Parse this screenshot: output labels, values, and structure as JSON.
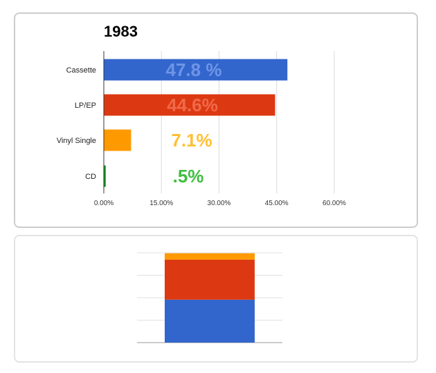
{
  "chart_data": [
    {
      "type": "bar",
      "orientation": "horizontal",
      "title": "1983",
      "categories": [
        "Cassette",
        "LP/EP",
        "Vinyl Single",
        "CD"
      ],
      "values": [
        47.8,
        44.6,
        7.1,
        0.5
      ],
      "data_labels": [
        "47.8 %",
        "44.6%",
        "7.1%",
        ".5%"
      ],
      "bar_colors": [
        "#3366cc",
        "#dc3912",
        "#ff9900",
        "#109618"
      ],
      "label_colors": [
        "#6f95e8",
        "#f06a4a",
        "#ffc034",
        "#3fbf3f"
      ],
      "xlim": [
        0,
        60
      ],
      "xticks": [
        0,
        15,
        30,
        45,
        60
      ],
      "xtick_labels": [
        "0.00%",
        "15.00%",
        "30.00%",
        "45.00%",
        "60.00%"
      ],
      "xlabel": "",
      "ylabel": "",
      "grid": true
    },
    {
      "type": "bar",
      "orientation": "vertical",
      "stacked": true,
      "categories": [
        ""
      ],
      "series": [
        {
          "values": [
            47.8
          ],
          "color": "#3366cc"
        },
        {
          "values": [
            44.6
          ],
          "color": "#dc3912"
        },
        {
          "values": [
            7.1
          ],
          "color": "#ff9900"
        }
      ],
      "ylim": [
        0,
        100
      ],
      "grid": true
    }
  ]
}
